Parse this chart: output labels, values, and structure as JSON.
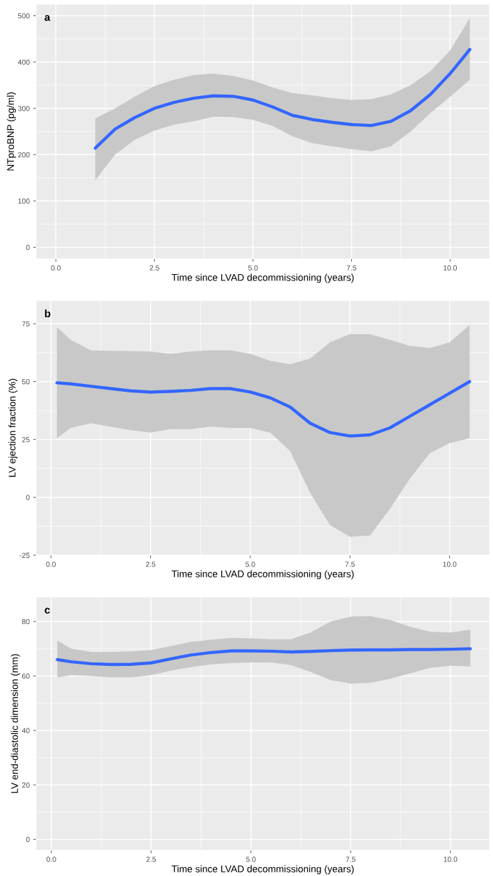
{
  "chart_data": [
    {
      "type": "line",
      "title": "a",
      "xlabel": "Time since LVAD decommissioning (years)",
      "ylabel": "NTproBNP (pg/ml)",
      "xlim": [
        -0.5,
        11.0
      ],
      "ylim": [
        -25,
        525
      ],
      "xticks": [
        {
          "value": 0,
          "label": "0.0"
        },
        {
          "value": 2.5,
          "label": "2.5"
        },
        {
          "value": 5,
          "label": "5.0"
        },
        {
          "value": 7.5,
          "label": "7.5"
        },
        {
          "value": 10,
          "label": "10.0"
        }
      ],
      "yticks": [
        0,
        100,
        200,
        300,
        400,
        500
      ],
      "grid": true,
      "x": [
        1,
        1.5,
        2,
        2.5,
        3,
        3.5,
        4,
        4.5,
        5,
        5.5,
        6,
        6.5,
        7,
        7.5,
        8,
        8.5,
        9,
        9.5,
        10,
        10.5
      ],
      "series": [
        {
          "color": "#3366ff",
          "values": [
            214,
            255,
            280,
            300,
            313,
            322,
            327,
            326,
            318,
            303,
            285,
            276,
            270,
            265,
            263,
            272,
            295,
            330,
            375,
            427
          ],
          "lower": [
            145,
            200,
            232,
            252,
            265,
            272,
            282,
            281,
            275,
            262,
            240,
            225,
            218,
            212,
            207,
            218,
            250,
            290,
            325,
            362
          ],
          "upper": [
            278,
            300,
            325,
            348,
            362,
            372,
            375,
            370,
            360,
            345,
            333,
            328,
            322,
            318,
            320,
            330,
            350,
            380,
            425,
            495
          ]
        }
      ]
    },
    {
      "type": "line",
      "title": "b",
      "xlabel": "Time since LVAD decommissioning (years)",
      "ylabel": "LV ejection fraction (%)",
      "xlim": [
        -0.37,
        11.0
      ],
      "ylim": [
        -25,
        85
      ],
      "xticks": [
        {
          "value": 0,
          "label": "0.0"
        },
        {
          "value": 2.5,
          "label": "2.5"
        },
        {
          "value": 5,
          "label": "5.0"
        },
        {
          "value": 7.5,
          "label": "7.5"
        },
        {
          "value": 10,
          "label": "10.0"
        }
      ],
      "yticks": [
        -25,
        0,
        25,
        50,
        75
      ],
      "grid": true,
      "x": [
        0.15,
        0.5,
        1,
        1.5,
        2,
        2.5,
        3,
        3.5,
        4,
        4.5,
        5,
        5.5,
        6,
        6.5,
        7,
        7.5,
        8,
        8.5,
        9,
        9.5,
        10,
        10.5
      ],
      "series": [
        {
          "color": "#3366ff",
          "values": [
            49.5,
            49,
            48,
            47,
            46,
            45.5,
            45.8,
            46.2,
            47,
            47,
            45.5,
            43,
            39,
            32,
            28,
            26.5,
            27,
            30,
            35,
            40,
            45,
            50
          ],
          "lower": [
            25.5,
            30,
            32,
            30.5,
            29,
            28,
            29.5,
            29.5,
            30.5,
            30,
            30,
            28,
            20,
            2,
            -12,
            -17,
            -16.5,
            -5,
            8,
            19,
            23.5,
            25.5
          ],
          "upper": [
            73.5,
            68,
            63.5,
            63.3,
            63.2,
            63,
            62,
            63,
            63.5,
            63.5,
            62,
            59,
            57.5,
            60,
            67,
            70.5,
            70.5,
            68,
            65.5,
            64.5,
            67,
            74.5
          ]
        }
      ]
    },
    {
      "type": "line",
      "title": "c",
      "xlabel": "Time since LVAD decommissioning (years)",
      "ylabel": "LV end-diastolic dimension (mm)",
      "xlim": [
        -0.38,
        10.98
      ],
      "ylim": [
        -4,
        89
      ],
      "xticks": [
        {
          "value": 0,
          "label": "0.0"
        },
        {
          "value": 2.5,
          "label": "2.5"
        },
        {
          "value": 5,
          "label": "5.0"
        },
        {
          "value": 7.5,
          "label": "7.5"
        },
        {
          "value": 10,
          "label": "10.0"
        }
      ],
      "yticks": [
        0,
        20,
        40,
        60,
        80
      ],
      "grid": true,
      "x": [
        0.15,
        0.5,
        1,
        1.5,
        2,
        2.5,
        3,
        3.5,
        4,
        4.5,
        5,
        5.5,
        6,
        6.5,
        7,
        7.5,
        8,
        8.5,
        9,
        9.5,
        10,
        10.5
      ],
      "series": [
        {
          "color": "#3366ff",
          "values": [
            66,
            65.2,
            64.5,
            64.2,
            64.3,
            64.8,
            66.3,
            67.7,
            68.6,
            69.2,
            69.2,
            69.1,
            68.8,
            69,
            69.3,
            69.5,
            69.6,
            69.6,
            69.7,
            69.7,
            69.8,
            70
          ],
          "lower": [
            59.5,
            60.3,
            60,
            59.5,
            59.5,
            60.3,
            62,
            63.2,
            64.3,
            64.7,
            65,
            65,
            64,
            61.5,
            58.5,
            57.2,
            57.5,
            59,
            61,
            63,
            63.8,
            63.5
          ],
          "upper": [
            73,
            70,
            68.8,
            68.8,
            69,
            69.5,
            71,
            72.5,
            73.3,
            74,
            73.8,
            73.5,
            73.5,
            76,
            80,
            81.8,
            82,
            80.5,
            78,
            76.2,
            76,
            77
          ]
        }
      ]
    }
  ]
}
